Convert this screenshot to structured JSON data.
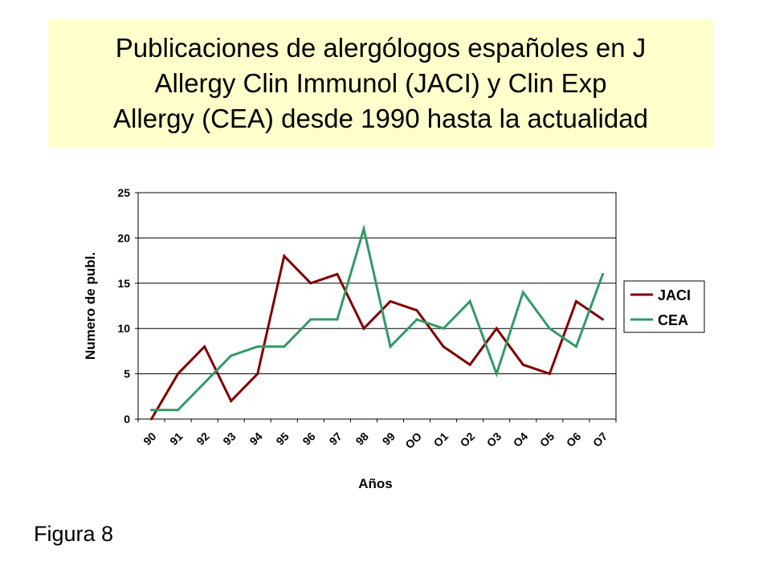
{
  "title_lines": [
    "Publicaciones de alergólogos españoles en J",
    "Allergy Clin Immunol (JACI) y Clin Exp",
    "Allergy (CEA) desde 1990 hasta la actualidad"
  ],
  "figure_label": "Figura 8",
  "colors": {
    "title_bg": "#ffffcc",
    "jaci": "#800000",
    "cea": "#339966",
    "grid": "#000000"
  },
  "chart_data": {
    "type": "line",
    "x": [
      "90",
      "91",
      "92",
      "93",
      "94",
      "95",
      "96",
      "97",
      "98",
      "99",
      "OO",
      "O1",
      "O2",
      "O3",
      "O4",
      "O5",
      "O6",
      "O7"
    ],
    "series": [
      {
        "name": "JACI",
        "color": "#800000",
        "values": [
          0,
          5,
          8,
          2,
          5,
          18,
          15,
          16,
          10,
          13,
          12,
          8,
          6,
          10,
          6,
          5,
          13,
          11
        ]
      },
      {
        "name": "CEA",
        "color": "#339966",
        "values": [
          1,
          1,
          4,
          7,
          8,
          8,
          11,
          11,
          21,
          8,
          11,
          10,
          13,
          5,
          14,
          10,
          8,
          16
        ]
      }
    ],
    "xlabel": "Años",
    "ylabel": "Numero de publ.",
    "ylim": [
      0,
      25
    ],
    "yticks": [
      0,
      5,
      10,
      15,
      20,
      25
    ],
    "grid": true,
    "legend_position": "right"
  }
}
